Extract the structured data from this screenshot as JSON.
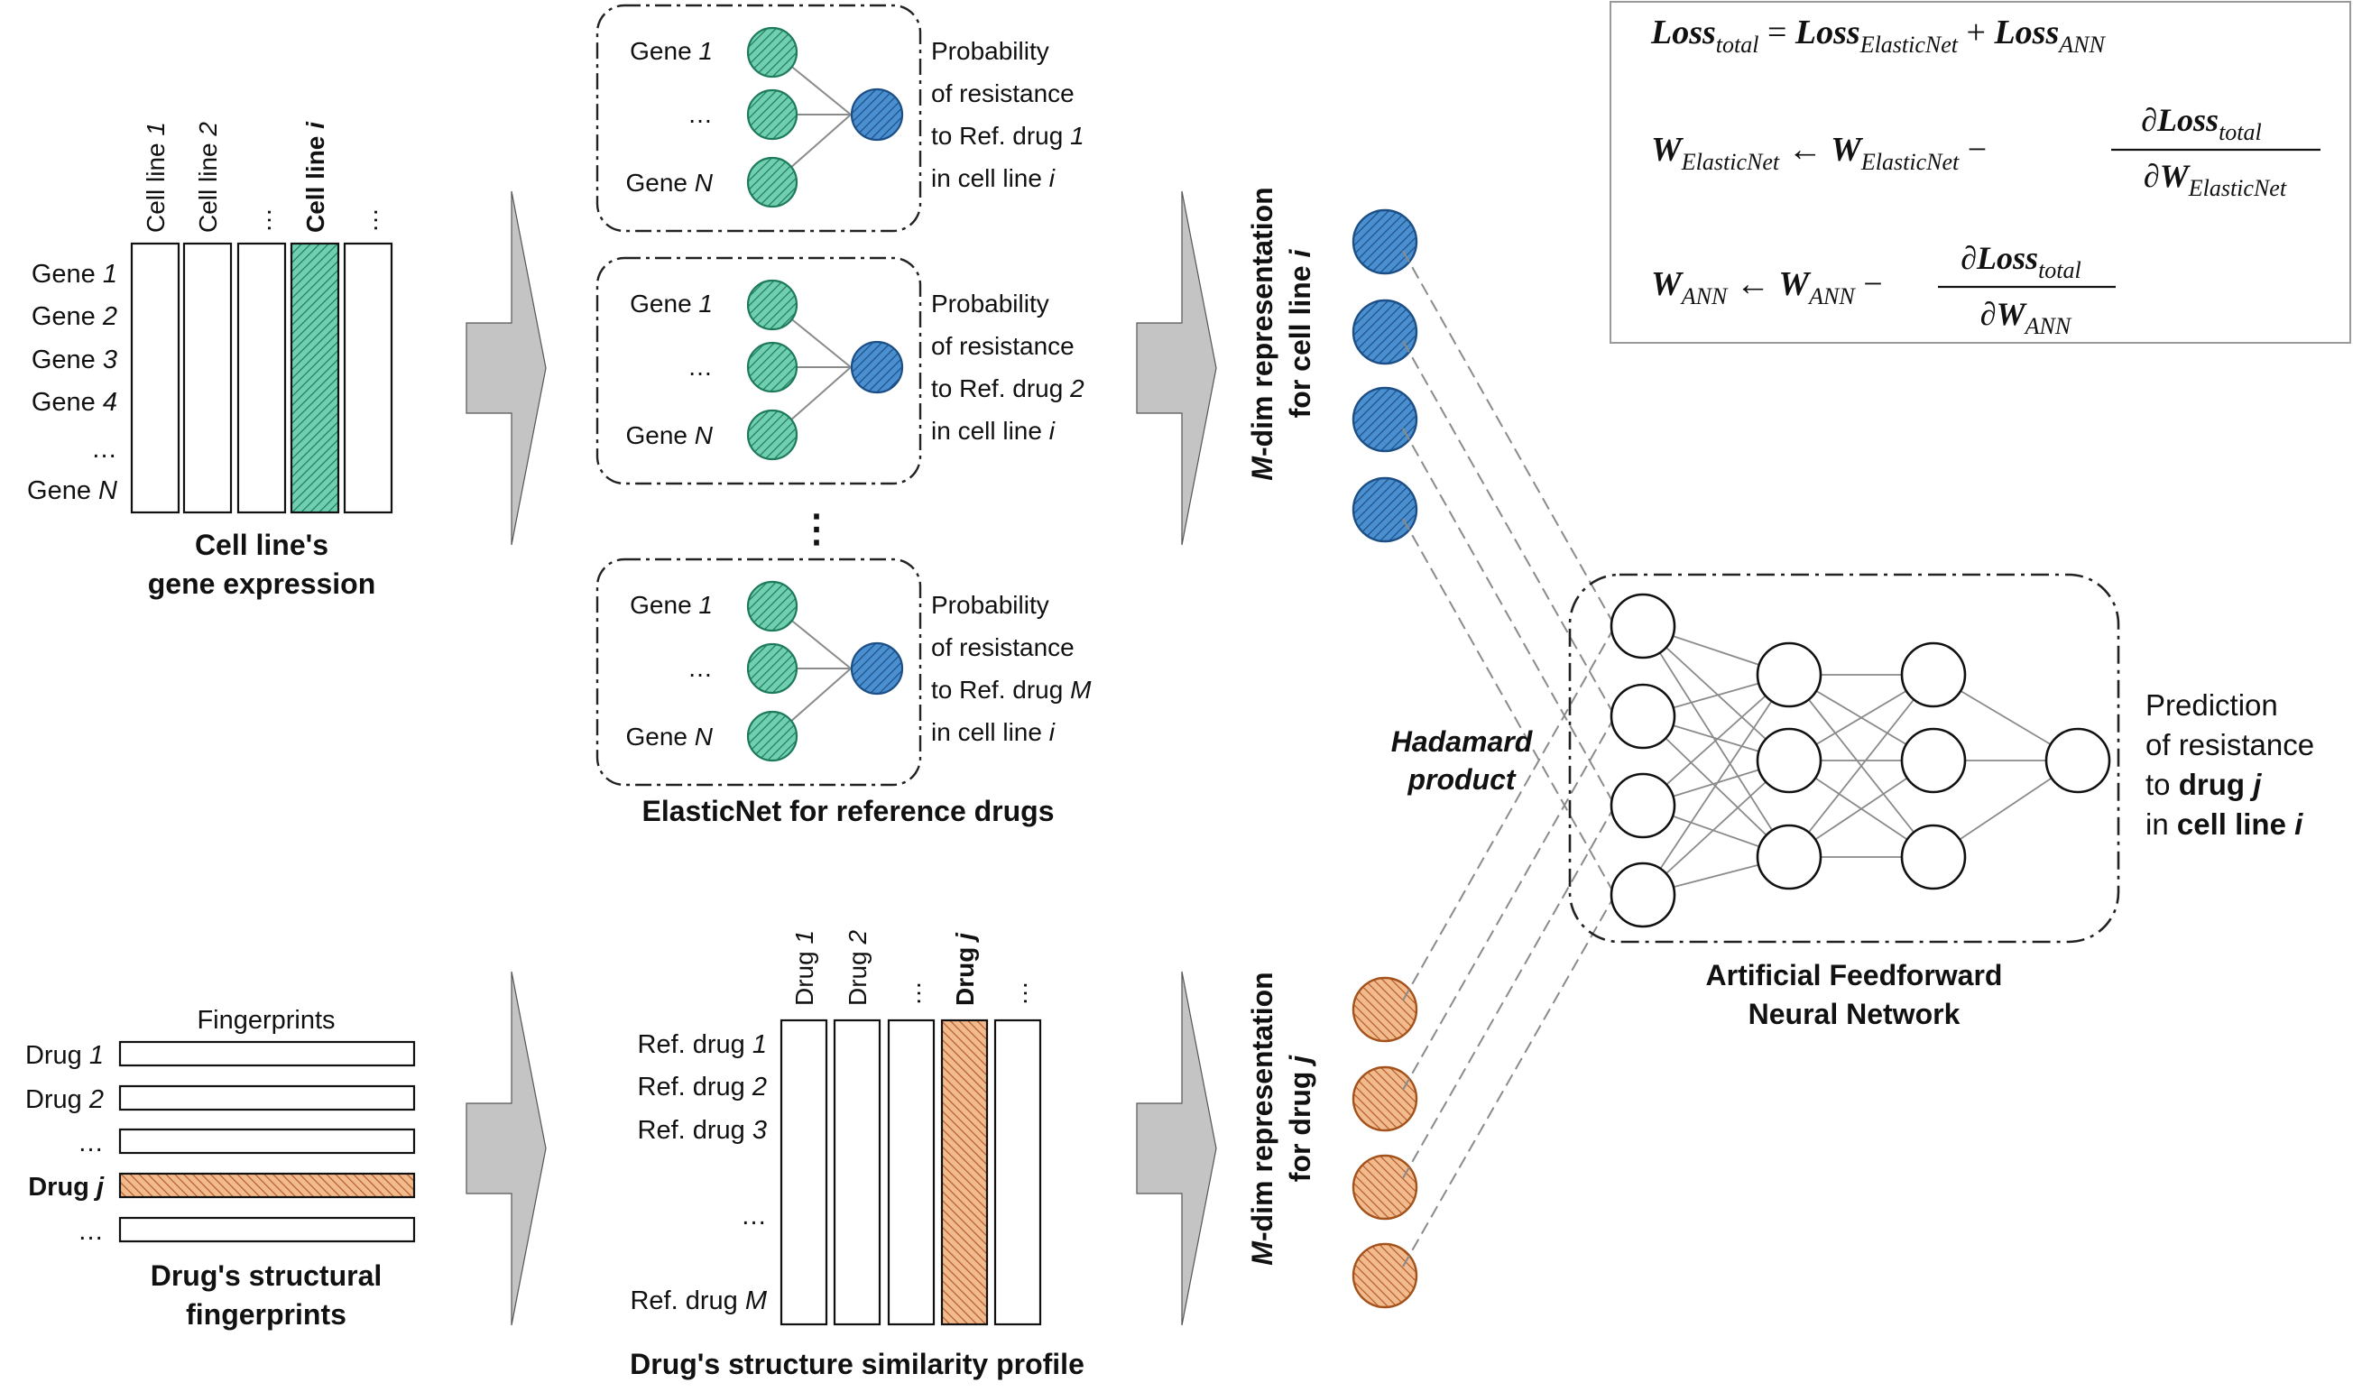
{
  "colors": {
    "gene_fill": "#6fcfb0",
    "gene_stroke": "#1f7a5c",
    "rep_cell_fill": "#4a8fd0",
    "rep_cell_stroke": "#1c4f86",
    "drug_fill": "#e9a36b",
    "drug_stroke": "#a3521c",
    "arrow_fill": "#c4c4c4",
    "line_gray": "#8a8a8a"
  },
  "gene_expression": {
    "columns": [
      {
        "pre": "Cell line ",
        "it": "1",
        "bold": false
      },
      {
        "pre": "Cell line ",
        "it": "2",
        "bold": false
      },
      {
        "pre": "…",
        "it": "",
        "bold": false
      },
      {
        "pre": "Cell line ",
        "it": "i",
        "bold": true
      },
      {
        "pre": "…",
        "it": "",
        "bold": false
      }
    ],
    "rows": [
      {
        "pre": "Gene ",
        "it": "1"
      },
      {
        "pre": "Gene ",
        "it": "2"
      },
      {
        "pre": "Gene ",
        "it": "3"
      },
      {
        "pre": "Gene ",
        "it": "4"
      },
      {
        "pre": "…",
        "it": ""
      },
      {
        "pre": "Gene ",
        "it": "N"
      }
    ],
    "caption": [
      "Cell line's",
      "gene expression"
    ]
  },
  "elasticnet": {
    "gene_top": {
      "pre": "Gene ",
      "it": "1"
    },
    "gene_mid": "…",
    "gene_bottom": {
      "pre": "Gene ",
      "it": "N"
    },
    "blocks": [
      {
        "l1": "Probability",
        "l2": "of resistance",
        "l3": "to Ref. drug ",
        "l3it": "1",
        "l4": "in cell line ",
        "l4it": "i"
      },
      {
        "l1": "Probability",
        "l2": "of resistance",
        "l3": "to Ref. drug ",
        "l3it": "2",
        "l4": "in cell line ",
        "l4it": "i"
      },
      {
        "l1": "Probability",
        "l2": "of resistance",
        "l3": "to Ref. drug ",
        "l3it": "M",
        "l4": "in cell line ",
        "l4it": "i"
      }
    ],
    "vdots": "⋮",
    "caption": "ElasticNet for reference drugs"
  },
  "rep_cell": {
    "pre": "-dim representation",
    "it": "M",
    "line2": "for cell line ",
    "line2it": "i"
  },
  "rep_drug": {
    "pre": "-dim representation",
    "it": "M",
    "line2": "for drug ",
    "line2it": "j"
  },
  "hadamard": [
    "Hadamard",
    "product"
  ],
  "ann": {
    "caption": [
      "Artificial Feedforward",
      "Neural Network"
    ],
    "layers": [
      4,
      3,
      3,
      1
    ]
  },
  "prediction": {
    "l1": "Prediction",
    "l2": "of resistance",
    "l3": "to ",
    "l3b": "drug ",
    "l3it": "j",
    "l4": "in ",
    "l4b": "cell line ",
    "l4it": "i"
  },
  "fingerprints": {
    "header": "Fingerprints",
    "rows": [
      {
        "pre": "Drug ",
        "it": "1",
        "bold": false,
        "hl": false
      },
      {
        "pre": "Drug ",
        "it": "2",
        "bold": false,
        "hl": false
      },
      {
        "pre": "…",
        "it": "",
        "bold": false,
        "hl": false
      },
      {
        "pre": "Drug ",
        "it": "j",
        "bold": true,
        "hl": true
      },
      {
        "pre": "…",
        "it": "",
        "bold": false,
        "hl": false
      }
    ],
    "caption": [
      "Drug's structural",
      "fingerprints"
    ]
  },
  "similarity": {
    "columns": [
      {
        "pre": "Drug ",
        "it": "1",
        "bold": false
      },
      {
        "pre": "Drug ",
        "it": "2",
        "bold": false
      },
      {
        "pre": "…",
        "it": "",
        "bold": false
      },
      {
        "pre": "Drug ",
        "it": "j",
        "bold": true
      },
      {
        "pre": "…",
        "it": "",
        "bold": false
      }
    ],
    "rows": [
      {
        "pre": "Ref. drug ",
        "it": "1"
      },
      {
        "pre": "Ref. drug ",
        "it": "2"
      },
      {
        "pre": "Ref. drug ",
        "it": "3"
      },
      {
        "pre": "…",
        "it": ""
      },
      {
        "pre": "Ref. drug ",
        "it": "M"
      }
    ],
    "caption": "Drug's structure similarity profile"
  },
  "equations": {
    "loss": {
      "lhs": "Loss",
      "lhs_sub": "total",
      "a": "Loss",
      "a_sub": "ElasticNet",
      "b": "Loss",
      "b_sub": "ANN"
    },
    "w_en": {
      "w": "W",
      "w_sub": "ElasticNet",
      "num": "∂Loss",
      "num_sub": "total",
      "den": "∂W",
      "den_sub": "ElasticNet"
    },
    "w_ann": {
      "w": "W",
      "w_sub": "ANN",
      "num": "∂Loss",
      "num_sub": "total",
      "den": "∂W",
      "den_sub": "ANN"
    }
  }
}
